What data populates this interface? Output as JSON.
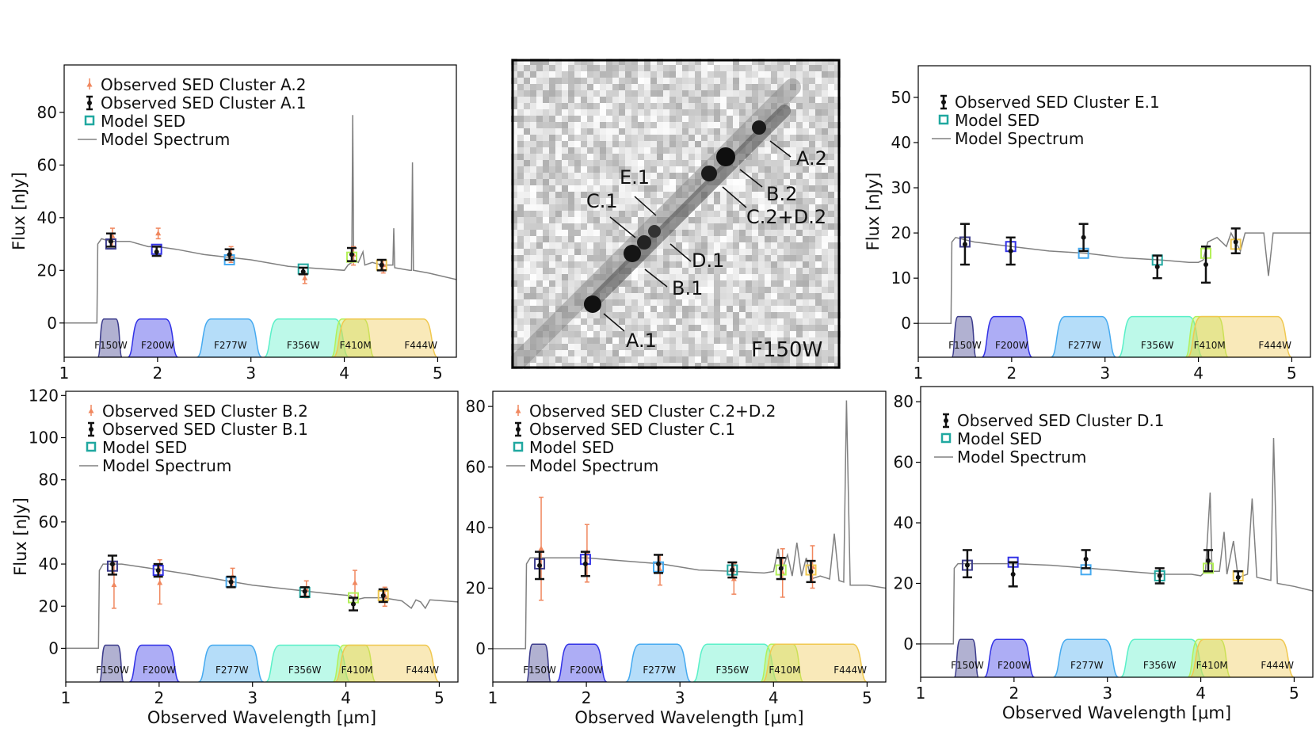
{
  "colors": {
    "observed_secondary": "#f0875e",
    "observed_primary": "#111111",
    "model_sed": "#20a8a0",
    "model_spectrum": "#808080",
    "filters": {
      "F150W": "#3c3c8c",
      "F200W": "#3232e6",
      "F277W": "#46aaf0",
      "F356W": "#5af0c8",
      "F410M": "#b4f05a",
      "F444W": "#f0c850"
    }
  },
  "image": {
    "label": "F150W",
    "markers": [
      "A.1",
      "B.1",
      "C.1",
      "D.1",
      "E.1",
      "A.2",
      "B.2",
      "C.2+D.2"
    ]
  },
  "chart_data": [
    {
      "id": "A",
      "type": "line",
      "legend": [
        "Observed SED Cluster A.2",
        "Observed SED Cluster A.1",
        "Model SED",
        "Model Spectrum"
      ],
      "ylabel": "Flux [nJy]",
      "xlabel": "",
      "xlim": [
        1,
        5.2
      ],
      "ylim": [
        -13,
        98
      ],
      "yticks": [
        0,
        20,
        40,
        60,
        80
      ],
      "xticks": [
        1,
        2,
        3,
        4,
        5
      ],
      "filters": [
        "F150W",
        "F200W",
        "F277W",
        "F356W",
        "F410M",
        "F444W"
      ],
      "filter_wavelengths": [
        1.5,
        1.99,
        2.77,
        3.56,
        4.08,
        4.4
      ],
      "model_sed": [
        30,
        28,
        24,
        20.5,
        25,
        22
      ],
      "obs_primary": [
        {
          "v": 31,
          "lo": 29,
          "hi": 34
        },
        {
          "v": 27,
          "lo": 25.5,
          "hi": 29
        },
        {
          "v": 26,
          "lo": 24,
          "hi": 28
        },
        {
          "v": 19.5,
          "lo": 18.5,
          "hi": 21
        },
        {
          "v": 26,
          "lo": 23.5,
          "hi": 28.5
        },
        {
          "v": 22,
          "lo": 20,
          "hi": 24
        }
      ],
      "obs_secondary": [
        {
          "v": 33,
          "lo": 29,
          "hi": 36
        },
        {
          "v": 34,
          "lo": 32,
          "hi": 36
        },
        {
          "v": 26,
          "lo": 23,
          "hi": 29
        },
        {
          "v": 17,
          "lo": 15,
          "hi": 19
        },
        {
          "v": 26,
          "lo": 22,
          "hi": 29
        },
        {
          "v": 22,
          "lo": 19,
          "hi": 24
        }
      ],
      "spectrum": [
        [
          1.0,
          0
        ],
        [
          1.35,
          0
        ],
        [
          1.36,
          30
        ],
        [
          1.4,
          32
        ],
        [
          1.5,
          31
        ],
        [
          1.7,
          31
        ],
        [
          1.9,
          29
        ],
        [
          2.0,
          29
        ],
        [
          2.2,
          28
        ],
        [
          2.5,
          26
        ],
        [
          3.0,
          24
        ],
        [
          3.4,
          21.5
        ],
        [
          3.8,
          20.5
        ],
        [
          4.0,
          20
        ],
        [
          4.04,
          22
        ],
        [
          4.08,
          23
        ],
        [
          4.09,
          79
        ],
        [
          4.1,
          24
        ],
        [
          4.15,
          23
        ],
        [
          4.2,
          27
        ],
        [
          4.22,
          22
        ],
        [
          4.3,
          23
        ],
        [
          4.4,
          22
        ],
        [
          4.45,
          22
        ],
        [
          4.52,
          22
        ],
        [
          4.53,
          36
        ],
        [
          4.54,
          21
        ],
        [
          4.7,
          20
        ],
        [
          4.72,
          20
        ],
        [
          4.73,
          61
        ],
        [
          4.74,
          20
        ],
        [
          4.9,
          19
        ],
        [
          5.2,
          16.5
        ]
      ]
    },
    {
      "id": "E",
      "type": "line",
      "legend": [
        "Observed SED Cluster E.1",
        "Model SED",
        "Model Spectrum"
      ],
      "ylabel": "Flux [nJy]",
      "xlabel": "",
      "xlim": [
        1,
        5.2
      ],
      "ylim": [
        -7.5,
        57
      ],
      "yticks": [
        0,
        10,
        20,
        30,
        40,
        50
      ],
      "xticks": [
        1,
        2,
        3,
        4,
        5
      ],
      "filters": [
        "F150W",
        "F200W",
        "F277W",
        "F356W",
        "F410M",
        "F444W"
      ],
      "filter_wavelengths": [
        1.5,
        1.99,
        2.77,
        3.56,
        4.08,
        4.4
      ],
      "model_sed": [
        18,
        17,
        15.5,
        14,
        15.5,
        17.5
      ],
      "obs_primary": [
        {
          "v": 17.5,
          "lo": 13,
          "hi": 22
        },
        {
          "v": 16,
          "lo": 13,
          "hi": 19
        },
        {
          "v": 19,
          "lo": 16,
          "hi": 22
        },
        {
          "v": 12.5,
          "lo": 10,
          "hi": 15
        },
        {
          "v": 13,
          "lo": 9,
          "hi": 17
        },
        {
          "v": 18,
          "lo": 15.5,
          "hi": 21
        }
      ],
      "obs_secondary": [],
      "spectrum": [
        [
          1.0,
          0
        ],
        [
          1.35,
          0
        ],
        [
          1.36,
          18
        ],
        [
          1.4,
          19
        ],
        [
          1.6,
          18
        ],
        [
          2.0,
          17
        ],
        [
          2.4,
          16
        ],
        [
          2.8,
          15.5
        ],
        [
          3.2,
          14.5
        ],
        [
          3.6,
          14
        ],
        [
          3.9,
          13.5
        ],
        [
          4.0,
          13.5
        ],
        [
          4.05,
          14
        ],
        [
          4.1,
          18
        ],
        [
          4.2,
          19
        ],
        [
          4.3,
          17
        ],
        [
          4.35,
          20
        ],
        [
          4.45,
          16
        ],
        [
          4.5,
          20
        ],
        [
          4.7,
          20
        ],
        [
          4.75,
          10.5
        ],
        [
          4.8,
          20
        ],
        [
          5.0,
          20
        ],
        [
          5.2,
          20
        ]
      ]
    },
    {
      "id": "B",
      "type": "line",
      "legend": [
        "Observed SED Cluster B.2",
        "Observed SED Cluster B.1",
        "Model SED",
        "Model Spectrum"
      ],
      "ylabel": "Flux [nJy]",
      "xlabel": "Observed Wavelength [μm]",
      "xlim": [
        1,
        5.2
      ],
      "ylim": [
        -16,
        122
      ],
      "yticks": [
        0,
        20,
        40,
        60,
        80,
        100,
        120
      ],
      "xticks": [
        1,
        2,
        3,
        4,
        5
      ],
      "filters": [
        "F150W",
        "F200W",
        "F277W",
        "F356W",
        "F410M",
        "F444W"
      ],
      "filter_wavelengths": [
        1.5,
        1.99,
        2.77,
        3.56,
        4.08,
        4.4
      ],
      "model_sed": [
        39,
        37,
        31.5,
        26.5,
        24,
        25
      ],
      "obs_primary": [
        {
          "v": 40,
          "lo": 35,
          "hi": 44
        },
        {
          "v": 37,
          "lo": 34,
          "hi": 40
        },
        {
          "v": 31.5,
          "lo": 29,
          "hi": 34
        },
        {
          "v": 27,
          "lo": 24.5,
          "hi": 29
        },
        {
          "v": 21,
          "lo": 18,
          "hi": 24
        },
        {
          "v": 25,
          "lo": 22,
          "hi": 28
        }
      ],
      "obs_secondary": [
        {
          "v": 30,
          "lo": 19,
          "hi": 41
        },
        {
          "v": 31,
          "lo": 21,
          "hi": 42
        },
        {
          "v": 34,
          "lo": 29,
          "hi": 38
        },
        {
          "v": 28,
          "lo": 24,
          "hi": 32
        },
        {
          "v": 31,
          "lo": 24,
          "hi": 37
        },
        {
          "v": 25,
          "lo": 20,
          "hi": 29
        }
      ],
      "spectrum": [
        [
          1.0,
          0
        ],
        [
          1.35,
          0
        ],
        [
          1.36,
          37
        ],
        [
          1.4,
          40
        ],
        [
          1.6,
          40
        ],
        [
          1.9,
          38
        ],
        [
          2.2,
          36
        ],
        [
          2.6,
          33
        ],
        [
          3.0,
          30
        ],
        [
          3.4,
          28
        ],
        [
          3.8,
          26
        ],
        [
          4.05,
          25
        ],
        [
          4.1,
          23
        ],
        [
          4.2,
          24
        ],
        [
          4.4,
          24
        ],
        [
          4.6,
          22.5
        ],
        [
          4.7,
          19
        ],
        [
          4.75,
          23
        ],
        [
          4.8,
          22
        ],
        [
          4.85,
          19
        ],
        [
          4.9,
          23
        ],
        [
          5.2,
          22
        ]
      ]
    },
    {
      "id": "C",
      "type": "line",
      "legend": [
        "Observed SED Cluster C.2+D.2",
        "Observed SED Cluster C.1",
        "Model SED",
        "Model Spectrum"
      ],
      "ylabel": "",
      "xlabel": "Observed Wavelength [μm]",
      "xlim": [
        1,
        5.2
      ],
      "ylim": [
        -11,
        85
      ],
      "yticks": [
        0,
        20,
        40,
        60,
        80
      ],
      "xticks": [
        1,
        2,
        3,
        4,
        5
      ],
      "filters": [
        "F150W",
        "F200W",
        "F277W",
        "F356W",
        "F410M",
        "F444W"
      ],
      "filter_wavelengths": [
        1.5,
        1.99,
        2.77,
        3.56,
        4.08,
        4.4
      ],
      "model_sed": [
        28,
        29.5,
        27,
        26,
        26,
        26
      ],
      "obs_primary": [
        {
          "v": 27.5,
          "lo": 23,
          "hi": 32
        },
        {
          "v": 28,
          "lo": 24,
          "hi": 32
        },
        {
          "v": 28,
          "lo": 25,
          "hi": 31
        },
        {
          "v": 26,
          "lo": 23.5,
          "hi": 28.5
        },
        {
          "v": 26.5,
          "lo": 23,
          "hi": 30
        },
        {
          "v": 25.5,
          "lo": 22,
          "hi": 29
        }
      ],
      "obs_secondary": [
        {
          "v": 33,
          "lo": 16,
          "hi": 50
        },
        {
          "v": 32,
          "lo": 22,
          "hi": 41
        },
        {
          "v": 26,
          "lo": 21,
          "hi": 31
        },
        {
          "v": 23,
          "lo": 18,
          "hi": 28
        },
        {
          "v": 25,
          "lo": 17,
          "hi": 33
        },
        {
          "v": 27,
          "lo": 20,
          "hi": 34
        }
      ],
      "spectrum": [
        [
          1.0,
          0
        ],
        [
          1.35,
          0
        ],
        [
          1.36,
          28
        ],
        [
          1.4,
          30
        ],
        [
          1.7,
          30
        ],
        [
          2.0,
          30
        ],
        [
          2.4,
          29
        ],
        [
          2.8,
          28
        ],
        [
          3.2,
          26
        ],
        [
          3.6,
          25.5
        ],
        [
          3.9,
          25
        ],
        [
          4.0,
          25.5
        ],
        [
          4.05,
          33
        ],
        [
          4.08,
          25
        ],
        [
          4.15,
          31
        ],
        [
          4.2,
          24
        ],
        [
          4.25,
          35
        ],
        [
          4.3,
          24
        ],
        [
          4.35,
          30
        ],
        [
          4.4,
          23
        ],
        [
          4.5,
          24
        ],
        [
          4.6,
          23
        ],
        [
          4.65,
          38
        ],
        [
          4.7,
          22.5
        ],
        [
          4.75,
          22
        ],
        [
          4.78,
          82
        ],
        [
          4.82,
          21
        ],
        [
          5.0,
          21
        ],
        [
          5.2,
          20
        ]
      ]
    },
    {
      "id": "D",
      "type": "line",
      "legend": [
        "Observed SED Cluster D.1",
        "Model SED",
        "Model Spectrum"
      ],
      "ylabel": "",
      "xlabel": "Observed Wavelength [μm]",
      "xlim": [
        1,
        5.2
      ],
      "ylim": [
        -11,
        85
      ],
      "yticks": [
        0,
        20,
        40,
        60,
        80
      ],
      "xticks": [
        1,
        2,
        3,
        4,
        5
      ],
      "filters": [
        "F150W",
        "F200W",
        "F277W",
        "F356W",
        "F410M",
        "F444W"
      ],
      "filter_wavelengths": [
        1.5,
        1.99,
        2.77,
        3.56,
        4.08,
        4.4
      ],
      "model_sed": [
        26,
        27,
        24.5,
        22.5,
        25,
        22.5
      ],
      "obs_primary": [
        {
          "v": 26,
          "lo": 22,
          "hi": 31
        },
        {
          "v": 23,
          "lo": 19,
          "hi": 27
        },
        {
          "v": 28,
          "lo": 25,
          "hi": 31
        },
        {
          "v": 22.5,
          "lo": 20,
          "hi": 25
        },
        {
          "v": 27.5,
          "lo": 24,
          "hi": 31
        },
        {
          "v": 22,
          "lo": 20,
          "hi": 24
        }
      ],
      "obs_secondary": [],
      "spectrum": [
        [
          1.0,
          0
        ],
        [
          1.35,
          0
        ],
        [
          1.36,
          25
        ],
        [
          1.4,
          26.5
        ],
        [
          1.7,
          26.5
        ],
        [
          2.0,
          26.5
        ],
        [
          2.4,
          26
        ],
        [
          2.8,
          25
        ],
        [
          3.2,
          24
        ],
        [
          3.6,
          23
        ],
        [
          3.9,
          23
        ],
        [
          4.0,
          22.5
        ],
        [
          4.05,
          24
        ],
        [
          4.1,
          50
        ],
        [
          4.12,
          24
        ],
        [
          4.2,
          24
        ],
        [
          4.25,
          37
        ],
        [
          4.28,
          23
        ],
        [
          4.35,
          34
        ],
        [
          4.4,
          22
        ],
        [
          4.5,
          23
        ],
        [
          4.55,
          48
        ],
        [
          4.6,
          22
        ],
        [
          4.75,
          21
        ],
        [
          4.78,
          68
        ],
        [
          4.82,
          20
        ],
        [
          5.0,
          19
        ],
        [
          5.2,
          17.5
        ]
      ]
    }
  ]
}
